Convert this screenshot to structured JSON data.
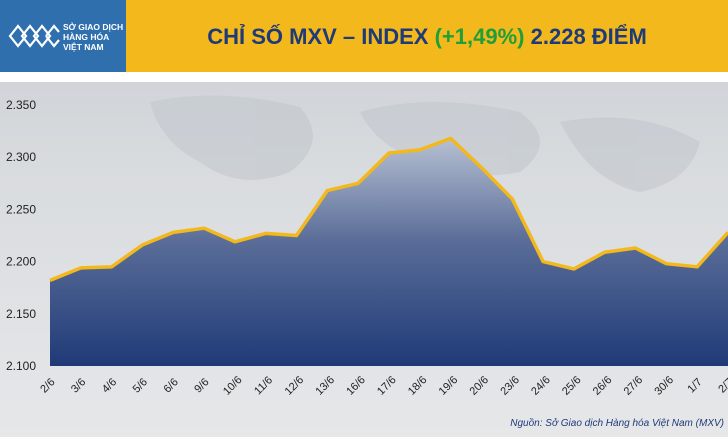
{
  "header": {
    "logo_lines": [
      "SỞ GIAO DỊCH",
      "HÀNG HÓA",
      "VIỆT NAM"
    ],
    "title_main": "CHỈ SỐ MXV – INDEX",
    "title_change": "(+1,49%)",
    "title_value": "2.228 ĐIỂM"
  },
  "colors": {
    "title_bar": "#f3b81b",
    "title_text": "#1f3a78",
    "change_text": "#1f9e3a",
    "line": "#f3b81b",
    "area_top": "#b6c0d3",
    "area_bottom": "#1f3a78",
    "logo_bg": "#2f6fae"
  },
  "source": "Nguồn: Sở Giao dịch Hàng hóa Việt Nam (MXV)",
  "chart_data": {
    "type": "area",
    "title": "CHỈ SỐ MXV – INDEX (+1,49%) 2.228 ĐIỂM",
    "categories": [
      "2/6",
      "3/6",
      "4/6",
      "5/6",
      "6/6",
      "9/6",
      "10/6",
      "11/6",
      "12/6",
      "13/6",
      "16/6",
      "17/6",
      "18/6",
      "19/6",
      "20/6",
      "23/6",
      "24/6",
      "25/6",
      "26/6",
      "27/6",
      "30/6",
      "1/7",
      "2/7"
    ],
    "values": [
      2182,
      2194,
      2195,
      2216,
      2228,
      2232,
      2219,
      2227,
      2225,
      2268,
      2275,
      2304,
      2307,
      2318,
      2290,
      2260,
      2200,
      2193,
      2209,
      2213,
      2198,
      2195,
      2228
    ],
    "ylim": [
      2100,
      2350
    ],
    "yticks": [
      2100,
      2150,
      2200,
      2250,
      2300,
      2350
    ],
    "ytick_labels": [
      "2.100",
      "2.150",
      "2.200",
      "2.250",
      "2.300",
      "2.350"
    ],
    "grid": false,
    "legend": "none"
  }
}
